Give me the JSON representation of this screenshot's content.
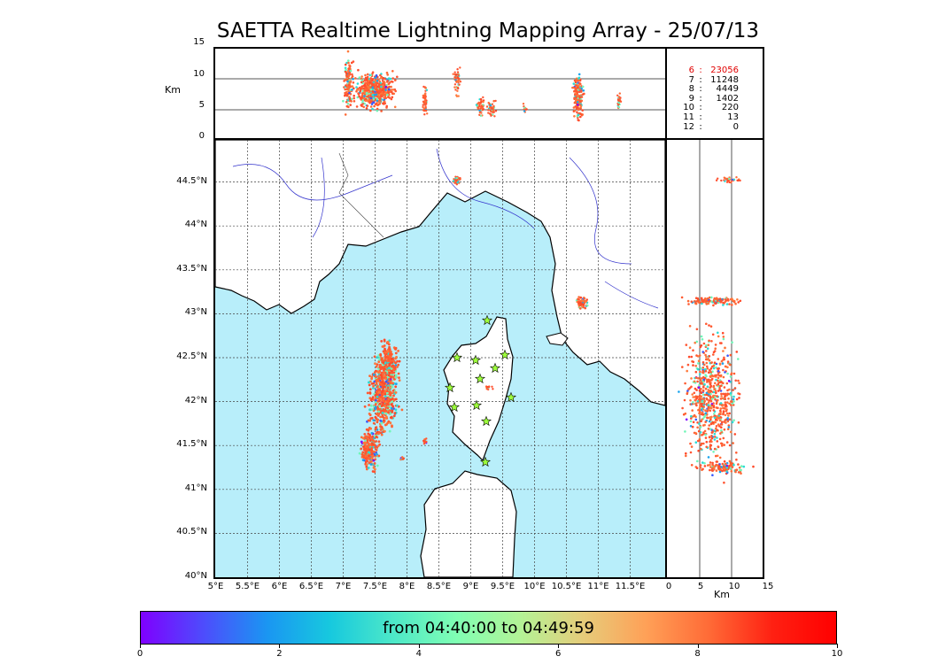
{
  "title": "SAETTA Realtime Lightning Mapping Array - 25/07/13",
  "altitude_panel": {
    "unit_label": "Km",
    "y_ticks": [
      "0",
      "5",
      "10",
      "15"
    ]
  },
  "map": {
    "lat_labels": [
      "40°N",
      "40.5°N",
      "41°N",
      "41.5°N",
      "42°N",
      "42.5°N",
      "43°N",
      "43.5°N",
      "44°N",
      "44.5°N"
    ],
    "lon_labels": [
      "5°E",
      "5.5°E",
      "6°E",
      "6.5°E",
      "7°E",
      "7.5°E",
      "8°E",
      "8.5°E",
      "9°E",
      "9.5°E",
      "10°E",
      "10.5°E",
      "11°E",
      "11.5°E"
    ],
    "sea_color": "#b8eefa",
    "land_color": "#ffffff"
  },
  "side_panel": {
    "x_ticks": [
      "0",
      "5",
      "10",
      "15"
    ],
    "unit_label": "Km"
  },
  "stations_table": [
    {
      "n": "6",
      "sep": ":",
      "count": "23056",
      "highlight": true
    },
    {
      "n": "7",
      "sep": ":",
      "count": "11248",
      "highlight": false
    },
    {
      "n": "8",
      "sep": ":",
      "count": "4449",
      "highlight": false
    },
    {
      "n": "9",
      "sep": ":",
      "count": "1402",
      "highlight": false
    },
    {
      "n": "10",
      "sep": ":",
      "count": "220",
      "highlight": false
    },
    {
      "n": "11",
      "sep": ":",
      "count": "13",
      "highlight": false
    },
    {
      "n": "12",
      "sep": ":",
      "count": "0",
      "highlight": false
    }
  ],
  "colorbar": {
    "text": "from 04:40:00 to 04:49:59",
    "ticks": [
      "0",
      "2",
      "4",
      "6",
      "8",
      "10"
    ]
  },
  "highlight_color": "#e00000"
}
